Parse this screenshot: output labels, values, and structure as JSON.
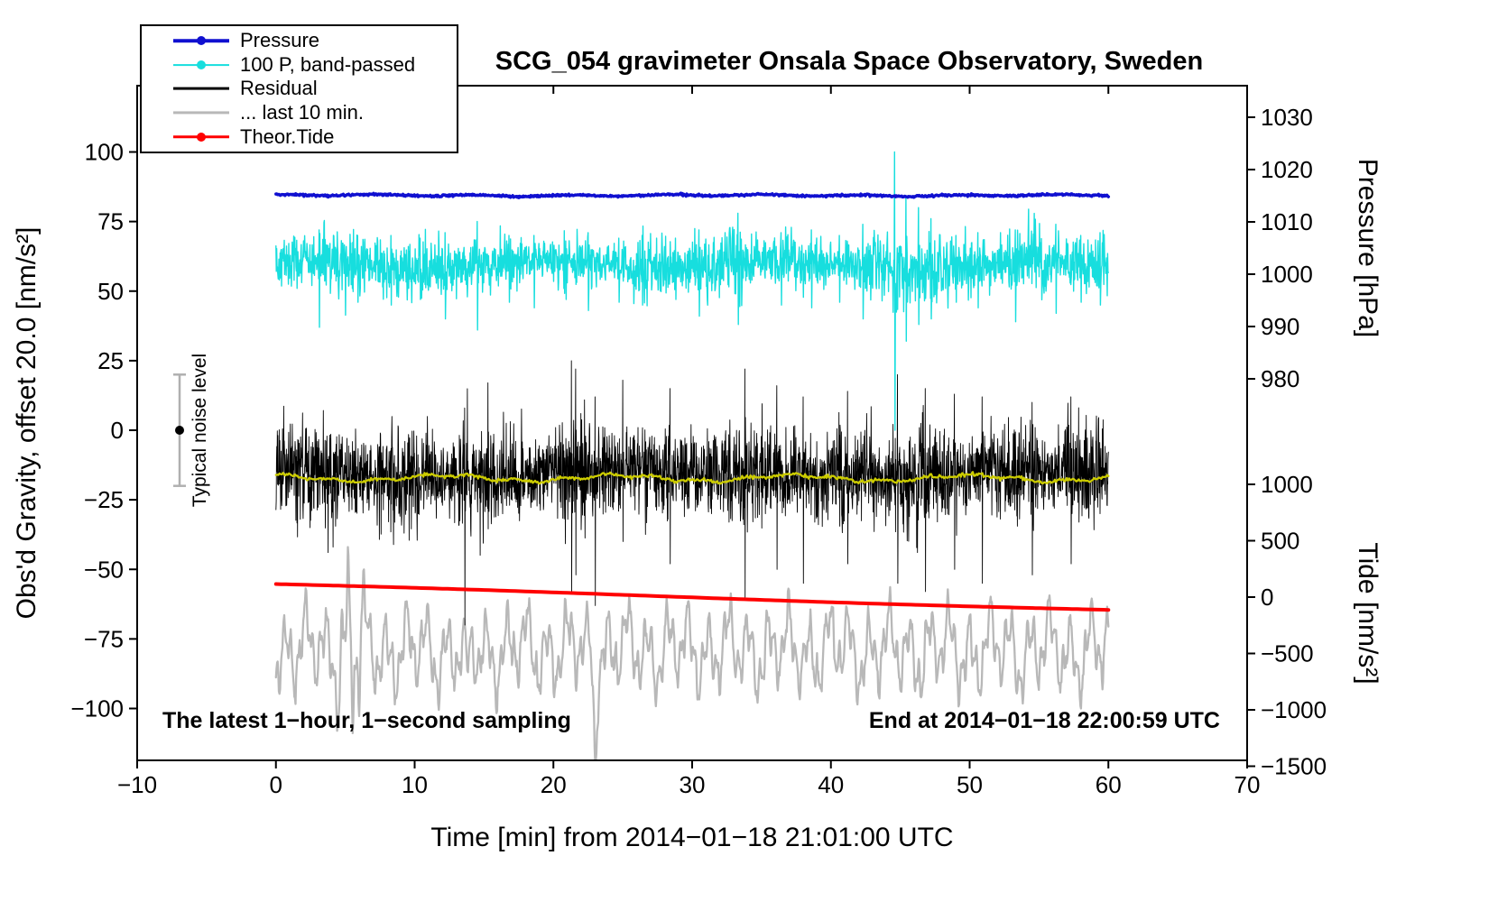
{
  "title": "SCG_054 gravimeter Onsala Space Observatory, Sweden",
  "legend": {
    "items": [
      {
        "label": "Pressure",
        "color": "#1010d0",
        "marker": true,
        "weight": 3.5
      },
      {
        "label": "100 P, band-passed",
        "color": "#17dede",
        "marker": true,
        "weight": 1.8
      },
      {
        "label": "Residual",
        "color": "#000000",
        "marker": false,
        "weight": 2.8
      },
      {
        "label": "... last 10 min.",
        "color": "#b8b8b8",
        "marker": false,
        "weight": 3.2
      },
      {
        "label": "Theor.Tide",
        "color": "#ff0000",
        "marker": true,
        "weight": 3.5
      }
    ]
  },
  "annotations": {
    "noise_label": "Typical noise level",
    "noise_bar": {
      "center_gravity": 0,
      "half_range_gravity": 20
    },
    "sampling_note": "The latest 1−hour, 1−second sampling",
    "end_note": "End at 2014−01−18 22:00:59 UTC"
  },
  "chart_data": {
    "type": "line",
    "title": "SCG_054 gravimeter Onsala Space Observatory, Sweden",
    "xlabel": "Time [min] from 2014−01−18 21:01:00 UTC",
    "x_range": [
      -10,
      70
    ],
    "x_ticks": [
      -10,
      0,
      10,
      20,
      30,
      40,
      50,
      60,
      70
    ],
    "data_span_min": [
      0,
      60
    ],
    "left_axis": {
      "label": "Obs'd Gravity, offset 20.0 [nm/s²]",
      "ticks": [
        100,
        75,
        50,
        25,
        0,
        -25,
        -50,
        -75,
        -100
      ],
      "range_shown": [
        -118,
        124
      ]
    },
    "pressure_axis": {
      "label": "Pressure [hPa]",
      "ticks": [
        1030,
        1020,
        1010,
        1000,
        990,
        980
      ]
    },
    "tide_axis": {
      "label": "Tide [nm/s²]",
      "ticks": [
        1000,
        500,
        0,
        -500,
        -1000,
        -1500
      ]
    },
    "series": [
      {
        "id": "last10",
        "name": "... last 10 min.",
        "color": "#b8b8b8",
        "width": 2.3,
        "points": 1400,
        "mean": -79,
        "typical_range": [
          -110,
          -46
        ],
        "components": [
          [
            1.45,
            10
          ],
          [
            0.52,
            6.5
          ],
          [
            3.8,
            4
          ],
          [
            0.23,
            2.2
          ]
        ],
        "burst": [
          4.0,
          6.8,
          1.9
        ],
        "dips": [
          [
            23.0,
            -31,
            0.16
          ],
          [
            13.8,
            -14,
            0.25
          ]
        ]
      },
      {
        "id": "residual",
        "name": "Residual",
        "color": "#000000",
        "width": 0.9,
        "points": 3000,
        "mean": -16,
        "typical_range": [
          -45,
          15
        ],
        "spikes": [
          [
            13.6,
            -70,
            8
          ],
          [
            21.3,
            -58,
            25
          ],
          [
            21.6,
            -52,
            22
          ],
          [
            23.0,
            -63,
            12
          ],
          [
            25.0,
            -40,
            18
          ],
          [
            28.4,
            -48,
            15
          ],
          [
            33.8,
            -60,
            22
          ],
          [
            36.1,
            -50,
            16
          ],
          [
            38.0,
            -55,
            12
          ],
          [
            41.2,
            -48,
            14
          ],
          [
            44.8,
            -55,
            20
          ],
          [
            46.8,
            -58,
            15
          ],
          [
            48.9,
            -50,
            13
          ],
          [
            50.9,
            -55,
            12
          ],
          [
            54.5,
            -52,
            10
          ],
          [
            57.3,
            -48,
            12
          ]
        ]
      },
      {
        "id": "smoothed",
        "name": "Residual running mean (yellow)",
        "color": "#cccc00",
        "width": 2.3,
        "points": 700,
        "mean": -17.2
      },
      {
        "id": "bandpassed",
        "name": "100 P, band-passed",
        "color": "#17dede",
        "width": 1.4,
        "points": 2200,
        "mean": 59.5,
        "noise_base": 3.1,
        "noise_var": 2.1,
        "typical_range": [
          45,
          75
        ],
        "major_spike": {
          "t_min": 44.6,
          "range": [
            0,
            100
          ]
        },
        "spikes": [
          [
            3.1,
            37,
            72
          ],
          [
            5.9,
            46,
            70
          ],
          [
            8.3,
            45,
            70
          ],
          [
            10.4,
            47,
            69
          ],
          [
            12.2,
            40,
            71
          ],
          [
            14.5,
            36,
            75
          ],
          [
            16.8,
            46,
            70
          ],
          [
            18.6,
            44,
            70
          ],
          [
            20.9,
            47,
            68
          ],
          [
            22.5,
            43,
            71
          ],
          [
            24.7,
            46,
            69
          ],
          [
            26.4,
            45,
            70
          ],
          [
            28.8,
            47,
            69
          ],
          [
            30.5,
            41,
            72
          ],
          [
            33.3,
            38,
            78
          ],
          [
            36.4,
            45,
            71
          ],
          [
            38.6,
            44,
            72
          ],
          [
            40.6,
            46,
            70
          ],
          [
            42.3,
            40,
            74
          ],
          [
            44.6,
            0,
            100
          ],
          [
            45.4,
            32,
            84
          ],
          [
            46.3,
            38,
            80
          ],
          [
            47.2,
            40,
            76
          ],
          [
            49.0,
            46,
            70
          ],
          [
            50.6,
            44,
            71
          ],
          [
            53.3,
            39,
            72
          ],
          [
            56.2,
            42,
            74
          ],
          [
            58.0,
            46,
            70
          ],
          [
            59.4,
            45,
            71
          ]
        ]
      },
      {
        "id": "tide",
        "name": "Theor.Tide",
        "color": "#ff0000",
        "width": 4,
        "points": 160,
        "start": -55.4,
        "end": -64.6,
        "right_axis_start_nms2": 95,
        "right_axis_end_nms2": -125
      },
      {
        "id": "pressure",
        "name": "Pressure",
        "color": "#1010d0",
        "width": 3.5,
        "points": 1100,
        "mean": 84.4,
        "wave_amp": 0.25,
        "noise": 0.18,
        "value_hpa_approx": 1015
      }
    ]
  }
}
